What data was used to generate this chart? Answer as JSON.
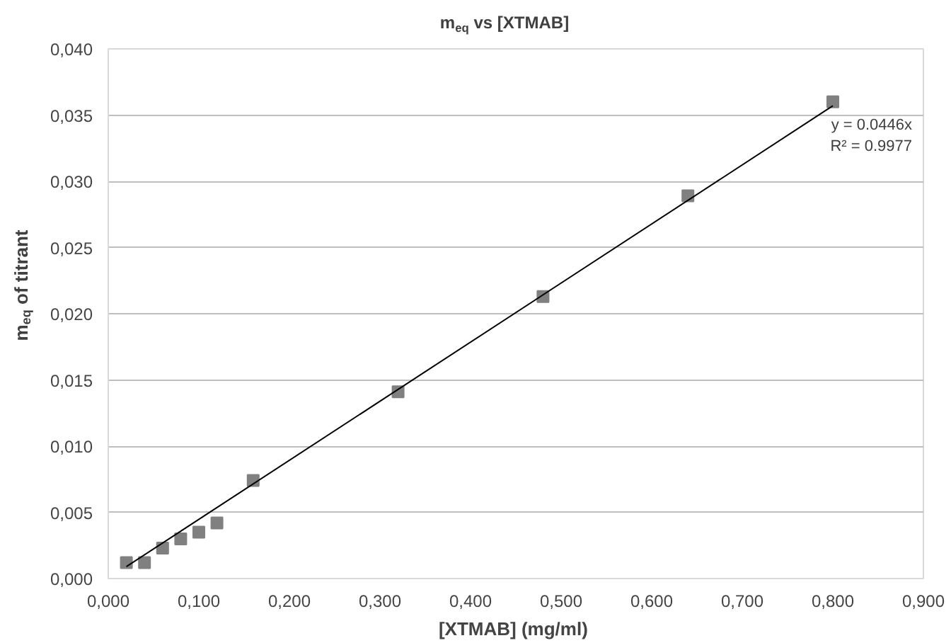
{
  "chart_data": {
    "type": "scatter",
    "title": "m$_{eq}$ vs [XTMAB]",
    "xlabel": "[XTMAB]  (mg/ml)",
    "ylabel": "m$_{eq}$ of titrant",
    "marker": "square",
    "grid": "y",
    "series": [
      {
        "color": "#808080",
        "x": [
          0.02,
          0.04,
          0.06,
          0.08,
          0.1,
          0.12,
          0.16,
          0.32,
          0.48,
          0.64,
          0.8
        ],
        "values": [
          0.0012,
          0.0012,
          0.0023,
          0.003,
          0.0035,
          0.0042,
          0.0074,
          0.0141,
          0.0213,
          0.0289,
          0.036
        ]
      },
      {
        "type": "line",
        "marker": "none",
        "color": "#000000",
        "x": [
          0.02,
          0.8
        ],
        "values": [
          0.0009,
          0.0357
        ]
      }
    ],
    "annotations": [
      "y = 0.0446x",
      "R² = 0.9977"
    ],
    "xlim": [
      0,
      0.9
    ],
    "ylim": [
      0,
      0.04
    ],
    "xticks": [
      {
        "value": 0,
        "label": "0,000"
      },
      {
        "value": 0.1,
        "label": "0,100"
      },
      {
        "value": 0.2,
        "label": "0,200"
      },
      {
        "value": 0.3,
        "label": "0,300"
      },
      {
        "value": 0.4,
        "label": "0,400"
      },
      {
        "value": 0.5,
        "label": "0,500"
      },
      {
        "value": 0.6,
        "label": "0,600"
      },
      {
        "value": 0.7,
        "label": "0,700"
      },
      {
        "value": 0.8,
        "label": "0,800"
      },
      {
        "value": 0.9,
        "label": "0,900"
      }
    ],
    "yticks": [
      {
        "value": 0,
        "label": "0,000"
      },
      {
        "value": 0.005,
        "label": "0,005"
      },
      {
        "value": 0.01,
        "label": "0,010"
      },
      {
        "value": 0.015,
        "label": "0,015"
      },
      {
        "value": 0.02,
        "label": "0,020"
      },
      {
        "value": 0.025,
        "label": "0,025"
      },
      {
        "value": 0.03,
        "label": "0,030"
      },
      {
        "value": 0.035,
        "label": "0,035"
      },
      {
        "value": 0.04,
        "label": "0,040"
      }
    ]
  }
}
